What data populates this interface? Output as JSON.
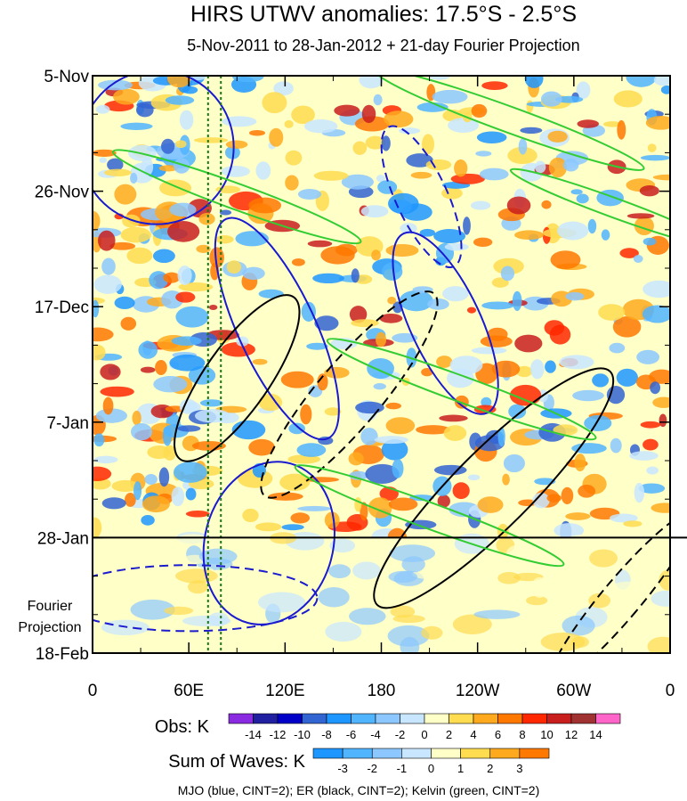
{
  "chart_data": {
    "type": "heatmap",
    "title": "HIRS UTWV anomalies: 17.5°S - 2.5°S",
    "subtitle": "5-Nov-2011 to 28-Jan-2012 + 21-day Fourier Projection",
    "y_tick_labels": [
      "5-Nov",
      "26-Nov",
      "17-Dec",
      "7-Jan",
      "28-Jan",
      "18-Feb"
    ],
    "y_tick_days": [
      0,
      21,
      42,
      63,
      84,
      105
    ],
    "y_range_days": [
      0,
      105
    ],
    "obs_end_day": 84,
    "x_tick_labels": [
      "0",
      "60E",
      "120E",
      "180",
      "120W",
      "60W",
      "0"
    ],
    "x_tick_lon": [
      0,
      60,
      120,
      180,
      240,
      300,
      360
    ],
    "x_range_lon": [
      0,
      360
    ],
    "projection_label_line1": "Fourier",
    "projection_label_line2": "Projection",
    "reference_lines_lon": [
      72,
      80
    ],
    "obs_legend": {
      "label": "Obs: K",
      "levels": [
        "-14",
        "-12",
        "-10",
        "-8",
        "-6",
        "-4",
        "-2",
        "0",
        "2",
        "4",
        "6",
        "8",
        "10",
        "12",
        "14"
      ],
      "colors": [
        "#8a2be2",
        "#2020a0",
        "#0000c8",
        "#3264d2",
        "#1e96ff",
        "#50b4ff",
        "#8cc8ff",
        "#c8e6ff",
        "#ffffc8",
        "#ffdc50",
        "#ffaa1e",
        "#ff7800",
        "#ff2800",
        "#c81e1e",
        "#a03232",
        "#ff64c8"
      ]
    },
    "waves_legend": {
      "label": "Sum of Waves: K",
      "levels": [
        "-3",
        "-2",
        "-1",
        "0",
        "1",
        "2",
        "3"
      ],
      "colors": [
        "#1e96ff",
        "#50b4ff",
        "#8cc8ff",
        "#c8e6ff",
        "#ffffc8",
        "#ffdc50",
        "#ffaa1e",
        "#ff7800"
      ]
    },
    "footer": "MJO (blue, CINT=2); ER (black, CINT=2); Kelvin (green, CINT=2)",
    "wave_contours": [
      {
        "wave": "MJO",
        "color": "#1a1ad0",
        "lon": 40,
        "day": 13,
        "rlon": 24,
        "rday": 14,
        "angle": -30,
        "dashed": false
      },
      {
        "wave": "MJO",
        "color": "#1a1ad0",
        "lon": 115,
        "day": 46,
        "rlon": 12,
        "rday": 22,
        "angle": -25,
        "dashed": false
      },
      {
        "wave": "MJO",
        "color": "#1a1ad0",
        "lon": 220,
        "day": 45,
        "rlon": 11,
        "rday": 18,
        "angle": -25,
        "dashed": false
      },
      {
        "wave": "MJO",
        "color": "#1a1ad0",
        "lon": 110,
        "day": 85,
        "rlon": 20,
        "rday": 15,
        "angle": 15,
        "dashed": false
      },
      {
        "wave": "MJO",
        "color": "#1a1ad0",
        "lon": 205,
        "day": 22,
        "rlon": 8,
        "rday": 14,
        "angle": -25,
        "dashed": true
      },
      {
        "wave": "MJO",
        "color": "#1a1ad0",
        "lon": 60,
        "day": 95,
        "rlon": 40,
        "rday": 6,
        "angle": 0,
        "dashed": true
      },
      {
        "wave": "ER",
        "color": "#000000",
        "lon": 160,
        "day": 58,
        "rlon": 10,
        "rday": 24,
        "angle": 40,
        "dashed": true
      },
      {
        "wave": "ER",
        "color": "#000000",
        "lon": 250,
        "day": 75,
        "rlon": 12,
        "rday": 30,
        "angle": 45,
        "dashed": false
      },
      {
        "wave": "ER",
        "color": "#000000",
        "lon": 90,
        "day": 55,
        "rlon": 10,
        "rday": 18,
        "angle": 35,
        "dashed": false
      },
      {
        "wave": "ER",
        "color": "#000000",
        "lon": 330,
        "day": 95,
        "rlon": 6,
        "rday": 20,
        "angle": 40,
        "dashed": true
      },
      {
        "wave": "Kelvin",
        "color": "#33cc33",
        "lon": 230,
        "day": 57,
        "rlon": 4,
        "rday": 26,
        "angle": -70,
        "dashed": false
      },
      {
        "wave": "Kelvin",
        "color": "#33cc33",
        "lon": 260,
        "day": 8,
        "rlon": 4,
        "rday": 26,
        "angle": -70,
        "dashed": false
      },
      {
        "wave": "Kelvin",
        "color": "#33cc33",
        "lon": 90,
        "day": 22,
        "rlon": 4,
        "rday": 24,
        "angle": -70,
        "dashed": false
      },
      {
        "wave": "Kelvin",
        "color": "#33cc33",
        "lon": 325,
        "day": 24,
        "rlon": 3,
        "rday": 20,
        "angle": -70,
        "dashed": false
      },
      {
        "wave": "Kelvin",
        "color": "#33cc33",
        "lon": 210,
        "day": 80,
        "rlon": 4,
        "rday": 26,
        "angle": -70,
        "dashed": false
      }
    ]
  }
}
